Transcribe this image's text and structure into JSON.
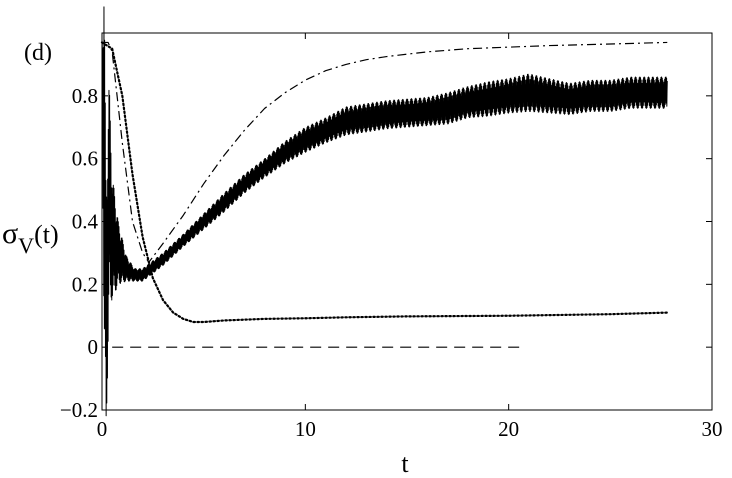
{
  "chart_data": {
    "type": "line",
    "panel_label": "(d)",
    "xlabel": "t",
    "ylabel": {
      "main": "σ",
      "sub": "V",
      "suffix": "(t)"
    },
    "xlim": [
      0,
      30
    ],
    "ylim": [
      -0.2,
      1.0
    ],
    "x_ticks": [
      0,
      10,
      20,
      30
    ],
    "x_tick_labels": [
      "0",
      "10",
      "20",
      "30"
    ],
    "y_ticks": [
      -0.2,
      0,
      0.2,
      0.4,
      0.6,
      0.8
    ],
    "y_tick_labels": [
      "−0.2",
      "0",
      "0.2",
      "0.4",
      "0.6",
      "0.8"
    ],
    "grid": false,
    "legend": "none",
    "series": [
      {
        "style": "solid-oscillating",
        "x": [
          0,
          0.1,
          0.2,
          0.35,
          0.5,
          0.8,
          1.2,
          1.6,
          2.0,
          3,
          4,
          5,
          6,
          7,
          8,
          9,
          10,
          11,
          12,
          13,
          14,
          15,
          16,
          17,
          18,
          19,
          20,
          21,
          22,
          23,
          24,
          25,
          26,
          27,
          27.8
        ],
        "y": [
          0.95,
          0.6,
          0.1,
          0.5,
          0.35,
          0.3,
          0.25,
          0.23,
          0.23,
          0.28,
          0.34,
          0.4,
          0.46,
          0.52,
          0.57,
          0.62,
          0.66,
          0.69,
          0.72,
          0.73,
          0.74,
          0.745,
          0.75,
          0.76,
          0.78,
          0.79,
          0.8,
          0.81,
          0.8,
          0.79,
          0.8,
          0.8,
          0.81,
          0.81,
          0.81
        ],
        "amplitude": [
          0.0,
          0.6,
          0.4,
          0.35,
          0.2,
          0.1,
          0.04,
          0.02,
          0.02,
          0.02,
          0.02,
          0.025,
          0.03,
          0.03,
          0.03,
          0.035,
          0.04,
          0.04,
          0.045,
          0.045,
          0.045,
          0.045,
          0.045,
          0.05,
          0.05,
          0.055,
          0.055,
          0.06,
          0.055,
          0.05,
          0.05,
          0.05,
          0.05,
          0.05,
          0.05
        ]
      },
      {
        "style": "dotted",
        "x": [
          0,
          0.5,
          1,
          1.5,
          2,
          2.5,
          3,
          3.5,
          4,
          4.5,
          5,
          6,
          8,
          10,
          12,
          15,
          20,
          25,
          27.8
        ],
        "y": [
          0.97,
          0.95,
          0.8,
          0.55,
          0.35,
          0.22,
          0.15,
          0.11,
          0.09,
          0.08,
          0.08,
          0.085,
          0.09,
          0.092,
          0.095,
          0.098,
          0.1,
          0.105,
          0.11
        ]
      },
      {
        "style": "dash-dot",
        "x": [
          0,
          0.3,
          0.5,
          1,
          1.5,
          2,
          2.3,
          3,
          4,
          5,
          6,
          7,
          8,
          9,
          10,
          11,
          12,
          13,
          14,
          16,
          18,
          20,
          22,
          25,
          27.8
        ],
        "y": [
          0.97,
          0.97,
          0.94,
          0.65,
          0.4,
          0.3,
          0.27,
          0.33,
          0.42,
          0.52,
          0.61,
          0.69,
          0.76,
          0.81,
          0.85,
          0.88,
          0.9,
          0.915,
          0.925,
          0.94,
          0.95,
          0.955,
          0.96,
          0.965,
          0.97
        ]
      },
      {
        "style": "dashed",
        "x": [
          0.5,
          20.8
        ],
        "y": [
          0,
          0
        ]
      }
    ]
  }
}
